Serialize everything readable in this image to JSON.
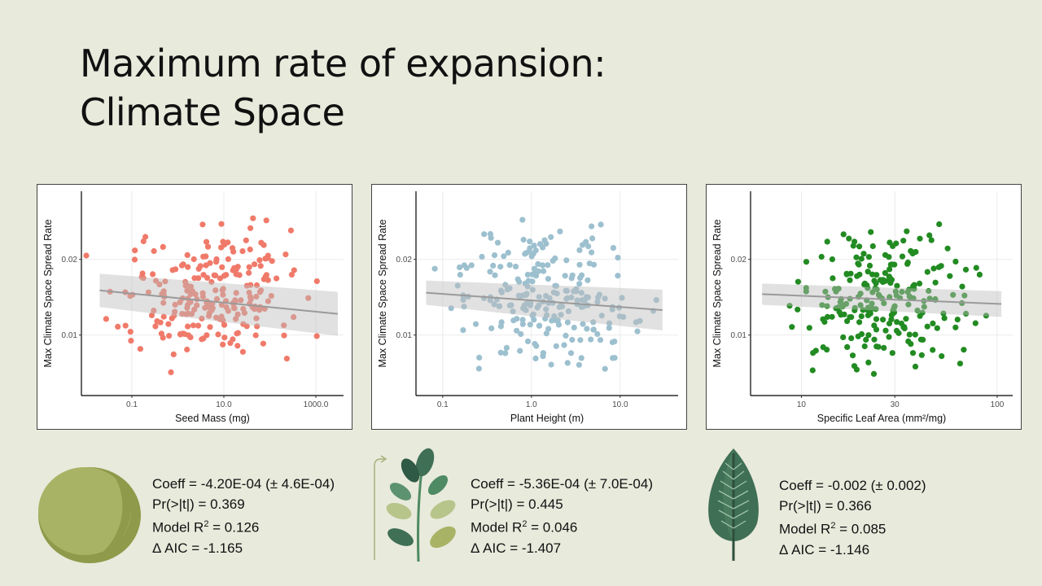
{
  "slide": {
    "title_line1": "Maximum rate of expansion:",
    "title_line2": "Climate Space"
  },
  "chart_data": [
    {
      "type": "scatter",
      "xlabel": "Seed Mass (mg)",
      "ylabel": "Max Climate Space Spread Rate",
      "xscale": "log10",
      "xlim": [
        0.008,
        4000
      ],
      "ylim": [
        0.002,
        0.029
      ],
      "xticks": [
        {
          "v": 0.1,
          "label": "0.1"
        },
        {
          "v": 10,
          "label": "10.0"
        },
        {
          "v": 1000,
          "label": "1000.0"
        }
      ],
      "yticks": [
        {
          "v": 0.01,
          "label": "0.01"
        },
        {
          "v": 0.02,
          "label": "0.02"
        }
      ],
      "color": "#f07a6a",
      "trend": {
        "x0": 0.02,
        "y0": 0.0159,
        "x1": 3000,
        "y1": 0.0128,
        "band0": 0.0022,
        "band1": 0.0029
      },
      "n": 230,
      "seed": 11
    },
    {
      "type": "scatter",
      "xlabel": "Plant Height (m)",
      "ylabel": "Max Climate Space Spread Rate",
      "xscale": "log10",
      "xlim": [
        0.05,
        45
      ],
      "ylim": [
        0.002,
        0.029
      ],
      "xticks": [
        {
          "v": 0.1,
          "label": "0.1"
        },
        {
          "v": 1,
          "label": "1.0"
        },
        {
          "v": 10,
          "label": "10.0"
        }
      ],
      "yticks": [
        {
          "v": 0.01,
          "label": "0.01"
        },
        {
          "v": 0.02,
          "label": "0.02"
        }
      ],
      "color": "#9dc0cf",
      "trend": {
        "x0": 0.065,
        "y0": 0.0156,
        "x1": 30,
        "y1": 0.0133,
        "band0": 0.0016,
        "band1": 0.0027
      },
      "n": 230,
      "seed": 23
    },
    {
      "type": "scatter",
      "xlabel": "Specific Leaf Area (mm²/mg)",
      "ylabel": "Max Climate Space Spread Rate",
      "xscale": "log10",
      "xlim": [
        5.5,
        120
      ],
      "ylim": [
        0.002,
        0.029
      ],
      "xticks": [
        {
          "v": 10,
          "label": "10"
        },
        {
          "v": 30,
          "label": "30"
        },
        {
          "v": 100,
          "label": "100"
        }
      ],
      "yticks": [
        {
          "v": 0.01,
          "label": "0.01"
        },
        {
          "v": 0.02,
          "label": "0.02"
        }
      ],
      "color": "#228b22",
      "trend": {
        "x0": 6.3,
        "y0": 0.0154,
        "x1": 105,
        "y1": 0.0141,
        "band0": 0.0014,
        "band1": 0.0017
      },
      "n": 230,
      "seed": 37
    }
  ],
  "stats": [
    {
      "coeff": "Coeff =  -4.20E-04 (± 4.6E-04)",
      "pr": "Pr(>|t|) = 0.369",
      "r2_prefix": "Model R",
      "r2_sup": "2",
      "r2_value": " = 0.126",
      "aic": "Δ AIC = -1.165"
    },
    {
      "coeff": "Coeff = -5.36E-04 (± 7.0E-04)",
      "pr": "Pr(>|t|) = 0.445",
      "r2_prefix": "Model R",
      "r2_sup": "2",
      "r2_value": " = 0.046",
      "aic": "Δ AIC = -1.407"
    },
    {
      "coeff": "Coeff = -0.002 (± 0.002)",
      "pr": "Pr(>|t|) = 0.366",
      "r2_prefix": "Model R",
      "r2_sup": "2",
      "r2_value": " = 0.085",
      "aic": "Δ AIC = -1.146"
    }
  ],
  "icons": [
    "seed-icon",
    "plant-sprout-icon",
    "leaf-icon"
  ]
}
